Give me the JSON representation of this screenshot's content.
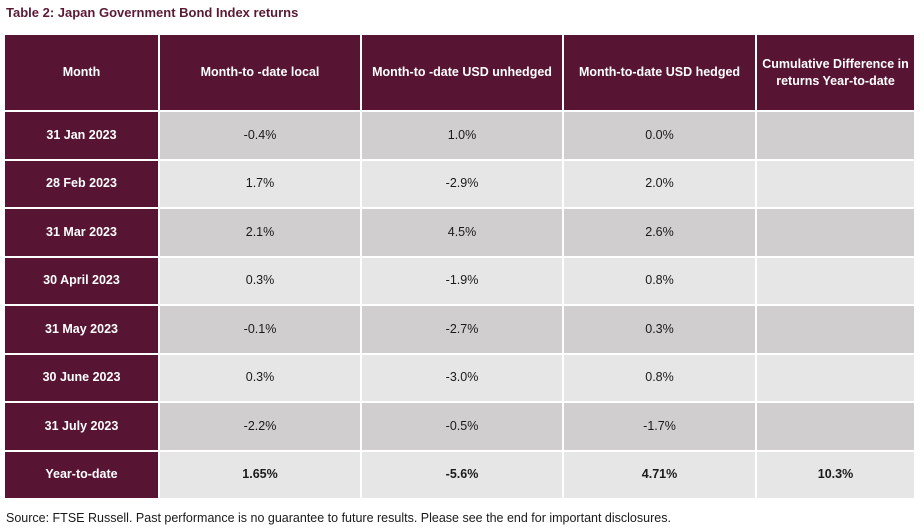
{
  "title": "Table 2: Japan Government Bond Index returns",
  "headers": [
    "Month",
    "Month-to -date local",
    "Month-to -date USD unhedged",
    "Month-to-date USD hedged",
    "Cumulative Difference in returns Year-to-date"
  ],
  "rows": [
    {
      "month": "31 Jan 2023",
      "local": "-0.4%",
      "unhedged": "1.0%",
      "hedged": "0.0%",
      "cumdiff": ""
    },
    {
      "month": "28 Feb 2023",
      "local": "1.7%",
      "unhedged": "-2.9%",
      "hedged": "2.0%",
      "cumdiff": ""
    },
    {
      "month": "31 Mar 2023",
      "local": "2.1%",
      "unhedged": "4.5%",
      "hedged": "2.6%",
      "cumdiff": ""
    },
    {
      "month": "30 April 2023",
      "local": "0.3%",
      "unhedged": "-1.9%",
      "hedged": "0.8%",
      "cumdiff": ""
    },
    {
      "month": "31 May 2023",
      "local": "-0.1%",
      "unhedged": "-2.7%",
      "hedged": "0.3%",
      "cumdiff": ""
    },
    {
      "month": "30 June 2023",
      "local": "0.3%",
      "unhedged": "-3.0%",
      "hedged": "0.8%",
      "cumdiff": ""
    },
    {
      "month": "31 July 2023",
      "local": "-2.2%",
      "unhedged": "-0.5%",
      "hedged": "-1.7%",
      "cumdiff": ""
    }
  ],
  "ytd": {
    "label": "Year-to-date",
    "local": "1.65%",
    "unhedged": "-5.6%",
    "hedged": "4.71%",
    "cumdiff": "10.3%"
  },
  "source": "Source: FTSE Russell. Past performance is no guarantee to future results. Please see the end for important disclosures.",
  "colors": {
    "header_bg": "#571533",
    "row_dark": "#d0cece",
    "row_light": "#e7e6e6",
    "title": "#5a1a35"
  }
}
